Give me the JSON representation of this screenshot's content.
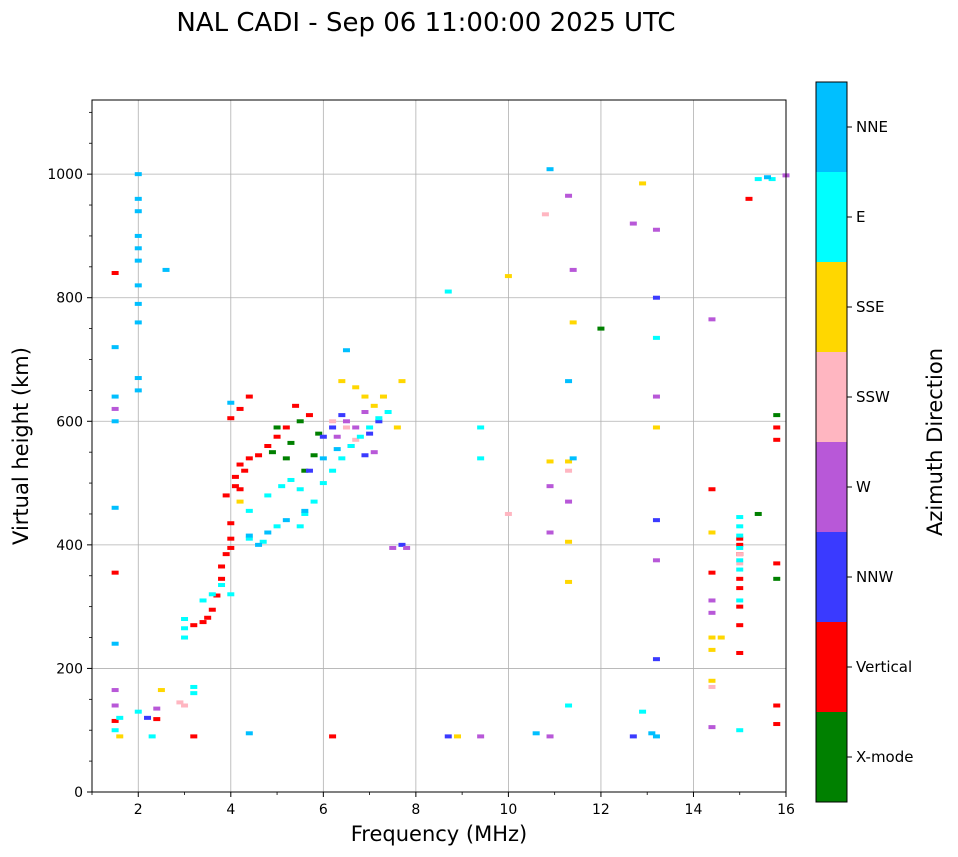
{
  "chart_data": {
    "type": "scatter",
    "title": "NAL CADI - Sep 06 11:00:00 2025 UTC",
    "xlabel": "Frequency (MHz)",
    "ylabel": "Virtual height (km)",
    "xlim": [
      1,
      16
    ],
    "ylim": [
      0,
      1120
    ],
    "xticks": [
      2,
      4,
      6,
      8,
      10,
      12,
      14,
      16
    ],
    "yticks": [
      0,
      200,
      400,
      600,
      800,
      1000
    ],
    "grid": true,
    "colorbar": {
      "label": "Azimuth Direction",
      "categories": [
        {
          "name": "X-mode",
          "color": "#008000"
        },
        {
          "name": "Vertical",
          "color": "#ff0000"
        },
        {
          "name": "NNW",
          "color": "#3a3aff"
        },
        {
          "name": "W",
          "color": "#b858d8"
        },
        {
          "name": "SSW",
          "color": "#ffb6c1"
        },
        {
          "name": "SSE",
          "color": "#ffd700"
        },
        {
          "name": "E",
          "color": "#00ffff"
        },
        {
          "name": "NNE",
          "color": "#00bfff"
        }
      ]
    },
    "series": [
      {
        "name": "Vertical",
        "points": [
          [
            1.5,
            115
          ],
          [
            1.5,
            355
          ],
          [
            1.5,
            840
          ],
          [
            2.4,
            118
          ],
          [
            3.2,
            90
          ],
          [
            3.2,
            270
          ],
          [
            3.4,
            275
          ],
          [
            3.5,
            282
          ],
          [
            3.6,
            295
          ],
          [
            3.7,
            318
          ],
          [
            3.8,
            345
          ],
          [
            3.8,
            365
          ],
          [
            3.9,
            385
          ],
          [
            4.0,
            395
          ],
          [
            4.0,
            410
          ],
          [
            4.0,
            435
          ],
          [
            3.9,
            480
          ],
          [
            4.1,
            495
          ],
          [
            4.2,
            490
          ],
          [
            4.1,
            510
          ],
          [
            4.3,
            520
          ],
          [
            4.2,
            530
          ],
          [
            4.4,
            540
          ],
          [
            4.6,
            545
          ],
          [
            4.8,
            560
          ],
          [
            5.0,
            575
          ],
          [
            5.2,
            590
          ],
          [
            4.0,
            605
          ],
          [
            4.2,
            620
          ],
          [
            4.4,
            640
          ],
          [
            5.4,
            625
          ],
          [
            5.7,
            610
          ],
          [
            6.2,
            90
          ],
          [
            14.4,
            490
          ],
          [
            14.4,
            355
          ],
          [
            15.0,
            225
          ],
          [
            15.0,
            270
          ],
          [
            15.0,
            300
          ],
          [
            15.0,
            330
          ],
          [
            15.0,
            345
          ],
          [
            15.0,
            385
          ],
          [
            15.0,
            400
          ],
          [
            15.0,
            410
          ],
          [
            15.2,
            960
          ],
          [
            15.8,
            370
          ],
          [
            15.8,
            140
          ],
          [
            15.8,
            110
          ],
          [
            15.8,
            570
          ],
          [
            15.8,
            590
          ]
        ]
      },
      {
        "name": "X-mode",
        "points": [
          [
            4.9,
            550
          ],
          [
            5.0,
            590
          ],
          [
            5.2,
            540
          ],
          [
            5.3,
            565
          ],
          [
            5.5,
            600
          ],
          [
            5.6,
            520
          ],
          [
            5.8,
            545
          ],
          [
            5.9,
            580
          ],
          [
            12.0,
            750
          ],
          [
            15.4,
            450
          ],
          [
            15.8,
            345
          ],
          [
            15.8,
            610
          ]
        ]
      },
      {
        "name": "NNW",
        "points": [
          [
            2.2,
            120
          ],
          [
            5.7,
            520
          ],
          [
            6.0,
            575
          ],
          [
            6.2,
            590
          ],
          [
            6.4,
            610
          ],
          [
            6.6,
            560
          ],
          [
            6.9,
            545
          ],
          [
            7.0,
            580
          ],
          [
            7.2,
            600
          ],
          [
            7.7,
            400
          ],
          [
            8.7,
            90
          ],
          [
            12.7,
            90
          ],
          [
            13.2,
            215
          ],
          [
            13.2,
            440
          ],
          [
            13.2,
            800
          ]
        ]
      },
      {
        "name": "W",
        "points": [
          [
            1.5,
            165
          ],
          [
            1.5,
            140
          ],
          [
            1.5,
            620
          ],
          [
            2.4,
            135
          ],
          [
            6.3,
            575
          ],
          [
            6.5,
            600
          ],
          [
            6.7,
            590
          ],
          [
            6.9,
            615
          ],
          [
            7.1,
            550
          ],
          [
            7.5,
            395
          ],
          [
            7.8,
            395
          ],
          [
            9.4,
            90
          ],
          [
            10.9,
            90
          ],
          [
            10.9,
            420
          ],
          [
            10.9,
            495
          ],
          [
            11.3,
            470
          ],
          [
            11.3,
            965
          ],
          [
            11.4,
            845
          ],
          [
            12.7,
            920
          ],
          [
            13.2,
            375
          ],
          [
            13.2,
            640
          ],
          [
            13.2,
            910
          ],
          [
            14.4,
            105
          ],
          [
            14.4,
            290
          ],
          [
            14.4,
            310
          ],
          [
            14.4,
            765
          ],
          [
            16.0,
            998
          ]
        ]
      },
      {
        "name": "SSW",
        "points": [
          [
            2.9,
            145
          ],
          [
            3.0,
            140
          ],
          [
            6.2,
            600
          ],
          [
            6.5,
            590
          ],
          [
            6.7,
            570
          ],
          [
            10.0,
            450
          ],
          [
            10.8,
            935
          ],
          [
            11.3,
            520
          ],
          [
            14.4,
            170
          ],
          [
            15.0,
            370
          ],
          [
            15.0,
            385
          ]
        ]
      },
      {
        "name": "SSE",
        "points": [
          [
            1.6,
            90
          ],
          [
            2.5,
            165
          ],
          [
            4.2,
            470
          ],
          [
            6.4,
            665
          ],
          [
            6.7,
            655
          ],
          [
            6.9,
            640
          ],
          [
            7.1,
            625
          ],
          [
            7.3,
            640
          ],
          [
            7.6,
            590
          ],
          [
            7.7,
            665
          ],
          [
            8.9,
            90
          ],
          [
            10.0,
            835
          ],
          [
            10.9,
            535
          ],
          [
            11.3,
            340
          ],
          [
            11.3,
            405
          ],
          [
            11.3,
            535
          ],
          [
            11.4,
            760
          ],
          [
            12.9,
            985
          ],
          [
            13.2,
            590
          ],
          [
            14.4,
            180
          ],
          [
            14.4,
            230
          ],
          [
            14.4,
            250
          ],
          [
            14.4,
            420
          ],
          [
            14.6,
            250
          ]
        ]
      },
      {
        "name": "E",
        "points": [
          [
            1.5,
            100
          ],
          [
            1.6,
            120
          ],
          [
            2.0,
            130
          ],
          [
            2.3,
            90
          ],
          [
            3.0,
            250
          ],
          [
            3.0,
            265
          ],
          [
            3.0,
            280
          ],
          [
            3.2,
            170
          ],
          [
            3.2,
            160
          ],
          [
            3.4,
            310
          ],
          [
            3.6,
            320
          ],
          [
            3.8,
            335
          ],
          [
            4.0,
            320
          ],
          [
            4.4,
            410
          ],
          [
            4.7,
            405
          ],
          [
            5.0,
            430
          ],
          [
            5.5,
            430
          ],
          [
            5.6,
            450
          ],
          [
            5.8,
            470
          ],
          [
            6.0,
            500
          ],
          [
            6.2,
            520
          ],
          [
            6.4,
            540
          ],
          [
            6.6,
            560
          ],
          [
            6.8,
            575
          ],
          [
            7.0,
            590
          ],
          [
            7.2,
            605
          ],
          [
            7.4,
            615
          ],
          [
            4.4,
            455
          ],
          [
            4.8,
            480
          ],
          [
            5.1,
            495
          ],
          [
            5.3,
            505
          ],
          [
            5.5,
            490
          ],
          [
            8.7,
            810
          ],
          [
            9.4,
            590
          ],
          [
            9.4,
            540
          ],
          [
            11.3,
            140
          ],
          [
            12.9,
            130
          ],
          [
            13.2,
            735
          ],
          [
            15.0,
            100
          ],
          [
            15.0,
            310
          ],
          [
            15.0,
            360
          ],
          [
            15.0,
            375
          ],
          [
            15.0,
            395
          ],
          [
            15.0,
            415
          ],
          [
            15.0,
            430
          ],
          [
            15.0,
            445
          ],
          [
            15.4,
            992
          ],
          [
            15.7,
            992
          ]
        ]
      },
      {
        "name": "NNE",
        "points": [
          [
            1.5,
            240
          ],
          [
            1.5,
            460
          ],
          [
            1.5,
            600
          ],
          [
            1.5,
            640
          ],
          [
            1.5,
            720
          ],
          [
            2.0,
            1000
          ],
          [
            2.0,
            960
          ],
          [
            2.0,
            940
          ],
          [
            2.0,
            900
          ],
          [
            2.0,
            880
          ],
          [
            2.0,
            860
          ],
          [
            2.0,
            820
          ],
          [
            2.0,
            790
          ],
          [
            2.0,
            760
          ],
          [
            2.0,
            670
          ],
          [
            2.0,
            650
          ],
          [
            2.6,
            845
          ],
          [
            4.4,
            95
          ],
          [
            4.0,
            630
          ],
          [
            4.4,
            415
          ],
          [
            4.6,
            400
          ],
          [
            4.8,
            420
          ],
          [
            5.2,
            440
          ],
          [
            5.6,
            455
          ],
          [
            6.5,
            715
          ],
          [
            6.0,
            540
          ],
          [
            6.3,
            555
          ],
          [
            10.6,
            95
          ],
          [
            10.9,
            1008
          ],
          [
            11.3,
            665
          ],
          [
            11.4,
            540
          ],
          [
            13.1,
            95
          ],
          [
            13.2,
            90
          ],
          [
            15.6,
            995
          ]
        ]
      }
    ]
  }
}
